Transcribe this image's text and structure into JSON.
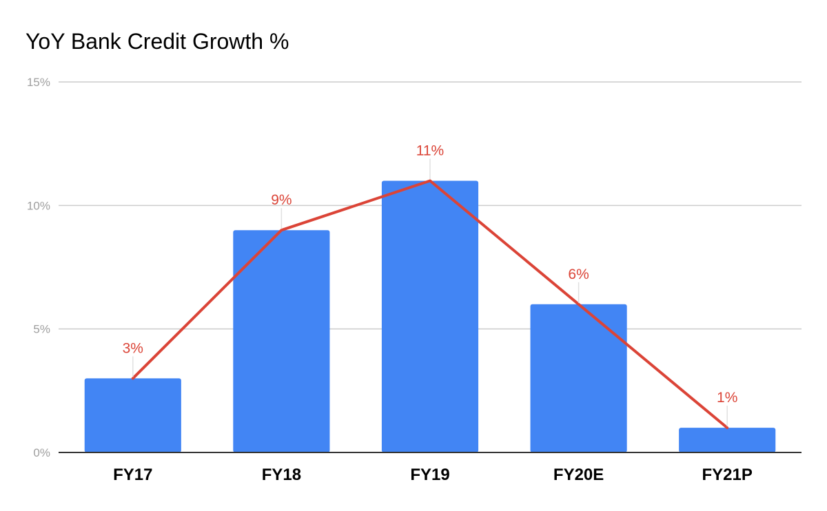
{
  "chart_data": {
    "type": "bar",
    "title": "YoY Bank Credit Growth %",
    "xlabel": "",
    "ylabel": "",
    "categories": [
      "FY17",
      "FY18",
      "FY19",
      "FY20E",
      "FY21P"
    ],
    "series": [
      {
        "type": "bar",
        "values": [
          3,
          9,
          11,
          6,
          1
        ],
        "color": "#4285f4"
      },
      {
        "type": "line",
        "values": [
          3,
          9,
          11,
          6,
          1
        ],
        "color": "#db4437",
        "data_labels": [
          "3%",
          "9%",
          "11%",
          "6%",
          "1%"
        ]
      }
    ],
    "ylim": [
      0,
      15
    ],
    "yticks": [
      0,
      5,
      10,
      15
    ],
    "ytick_labels": [
      "0%",
      "5%",
      "10%",
      "15%"
    ],
    "grid": true,
    "legend": "none",
    "colors": {
      "gridline": "#cccccc",
      "axis": "#333333",
      "tick_text": "#9e9e9e",
      "title_text": "#000000"
    }
  }
}
